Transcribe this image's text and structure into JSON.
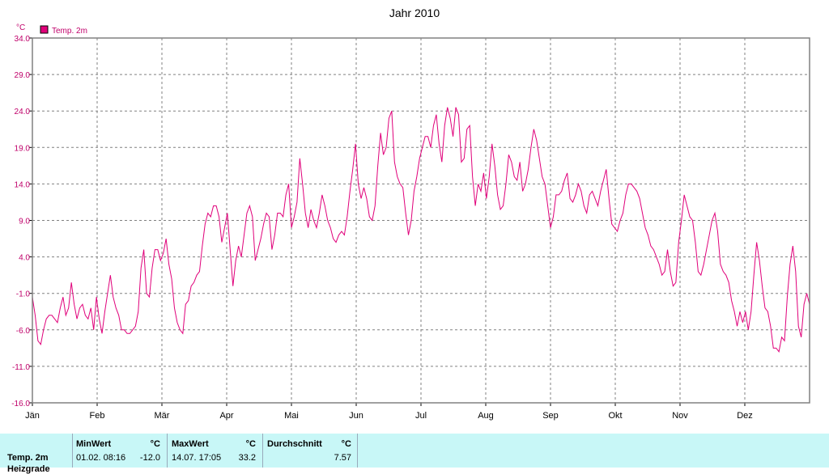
{
  "chart_data": {
    "type": "line",
    "title": "Jahr 2010",
    "ylabel": "°C",
    "ylim": [
      -16,
      34
    ],
    "yticks": [
      "34.0",
      "29.0",
      "24.0",
      "19.0",
      "14.0",
      "9.0",
      "4.0",
      "-1.0",
      "-6.0",
      "-11.0",
      "-16.0"
    ],
    "xticks": [
      "Jän",
      "Feb",
      "Mär",
      "Apr",
      "Mai",
      "Jun",
      "Jul",
      "Aug",
      "Sep",
      "Okt",
      "Nov",
      "Dez"
    ],
    "grid": true,
    "legend": "top-left",
    "series": [
      {
        "name": "Temp. 2m",
        "color": "#e0007a",
        "values": [
          -1.5,
          -4.0,
          -7.5,
          -8.0,
          -6.0,
          -4.5,
          -4.0,
          -4.0,
          -4.5,
          -5.0,
          -3.0,
          -1.5,
          -4.0,
          -3.0,
          0.5,
          -2.5,
          -4.5,
          -3.0,
          -2.5,
          -4.0,
          -4.5,
          -3.0,
          -6.0,
          -1.5,
          -4.5,
          -6.5,
          -3.5,
          -1.0,
          1.5,
          -1.5,
          -3.0,
          -4.0,
          -6.0,
          -6.0,
          -6.5,
          -6.5,
          -6.0,
          -5.5,
          -3.5,
          2.5,
          5.0,
          -1.0,
          -1.5,
          2.5,
          5.0,
          5.0,
          3.5,
          4.5,
          6.5,
          3.0,
          1.0,
          -3.0,
          -5.0,
          -6.0,
          -6.5,
          -2.5,
          -2.0,
          0.0,
          0.5,
          1.5,
          2.0,
          5.5,
          8.5,
          10.0,
          9.5,
          11.0,
          11.0,
          9.5,
          6.0,
          8.0,
          10.0,
          5.0,
          0.0,
          3.5,
          5.5,
          4.0,
          7.0,
          10.0,
          11.0,
          9.5,
          3.5,
          5.0,
          6.5,
          8.5,
          10.0,
          9.5,
          5.0,
          7.0,
          10.0,
          10.0,
          9.5,
          12.5,
          14.0,
          8.0,
          9.5,
          11.5,
          17.5,
          14.0,
          10.0,
          8.0,
          10.5,
          9.0,
          8.0,
          10.0,
          12.5,
          11.0,
          9.0,
          8.0,
          6.5,
          6.0,
          7.0,
          7.5,
          7.0,
          9.5,
          13.0,
          16.0,
          19.5,
          14.0,
          12.0,
          13.5,
          12.0,
          9.5,
          9.0,
          11.0,
          16.5,
          21.0,
          18.0,
          19.0,
          23.0,
          24.0,
          17.0,
          15.0,
          14.0,
          13.5,
          10.0,
          7.0,
          9.0,
          13.0,
          15.0,
          17.5,
          19.0,
          20.5,
          20.5,
          19.0,
          22.0,
          23.5,
          19.5,
          17.0,
          22.0,
          24.5,
          23.0,
          20.5,
          24.5,
          23.5,
          17.0,
          17.5,
          21.5,
          22.0,
          15.0,
          11.0,
          14.0,
          13.0,
          15.5,
          12.0,
          15.0,
          19.5,
          16.5,
          12.5,
          10.5,
          11.0,
          14.0,
          18.0,
          17.0,
          15.0,
          14.5,
          17.0,
          13.0,
          14.0,
          16.0,
          19.0,
          21.5,
          20.0,
          17.5,
          15.0,
          14.0,
          11.0,
          8.0,
          9.5,
          12.5,
          12.5,
          13.0,
          14.5,
          15.5,
          12.0,
          11.5,
          12.5,
          14.0,
          13.0,
          11.0,
          10.0,
          12.5,
          13.0,
          12.0,
          11.0,
          13.0,
          14.5,
          16.0,
          12.0,
          8.5,
          8.0,
          7.5,
          9.0,
          10.0,
          12.5,
          14.0,
          14.0,
          13.5,
          13.0,
          12.0,
          10.0,
          8.0,
          7.0,
          5.5,
          5.0,
          4.0,
          3.0,
          1.5,
          2.0,
          5.0,
          2.0,
          0.0,
          0.5,
          6.0,
          9.0,
          12.5,
          11.0,
          9.5,
          9.0,
          6.0,
          2.0,
          1.5,
          3.0,
          5.0,
          7.0,
          9.0,
          10.0,
          7.5,
          3.0,
          2.0,
          1.5,
          0.5,
          -2.0,
          -3.5,
          -5.5,
          -3.5,
          -5.0,
          -3.5,
          -6.0,
          -3.5,
          1.5,
          6.0,
          3.5,
          0.0,
          -3.0,
          -3.5,
          -5.5,
          -8.5,
          -8.5,
          -9.0,
          -7.0,
          -7.5,
          -1.5,
          3.0,
          5.5,
          2.0,
          -5.5,
          -7.0,
          -2.5,
          -1.0,
          -2.5
        ]
      }
    ]
  },
  "summary": {
    "row_label": "Temp. 2m",
    "row_label_2": "Heizgrade",
    "min_header": "MinWert",
    "min_unit": "°C",
    "min_date": "01.02.  08:16",
    "min_value": "-12.0",
    "max_header": "MaxWert",
    "max_unit": "°C",
    "max_date": "14.07.  17:05",
    "max_value": "33.2",
    "avg_header": "Durchschnitt",
    "avg_unit": "°C",
    "avg_value": "7.57"
  }
}
